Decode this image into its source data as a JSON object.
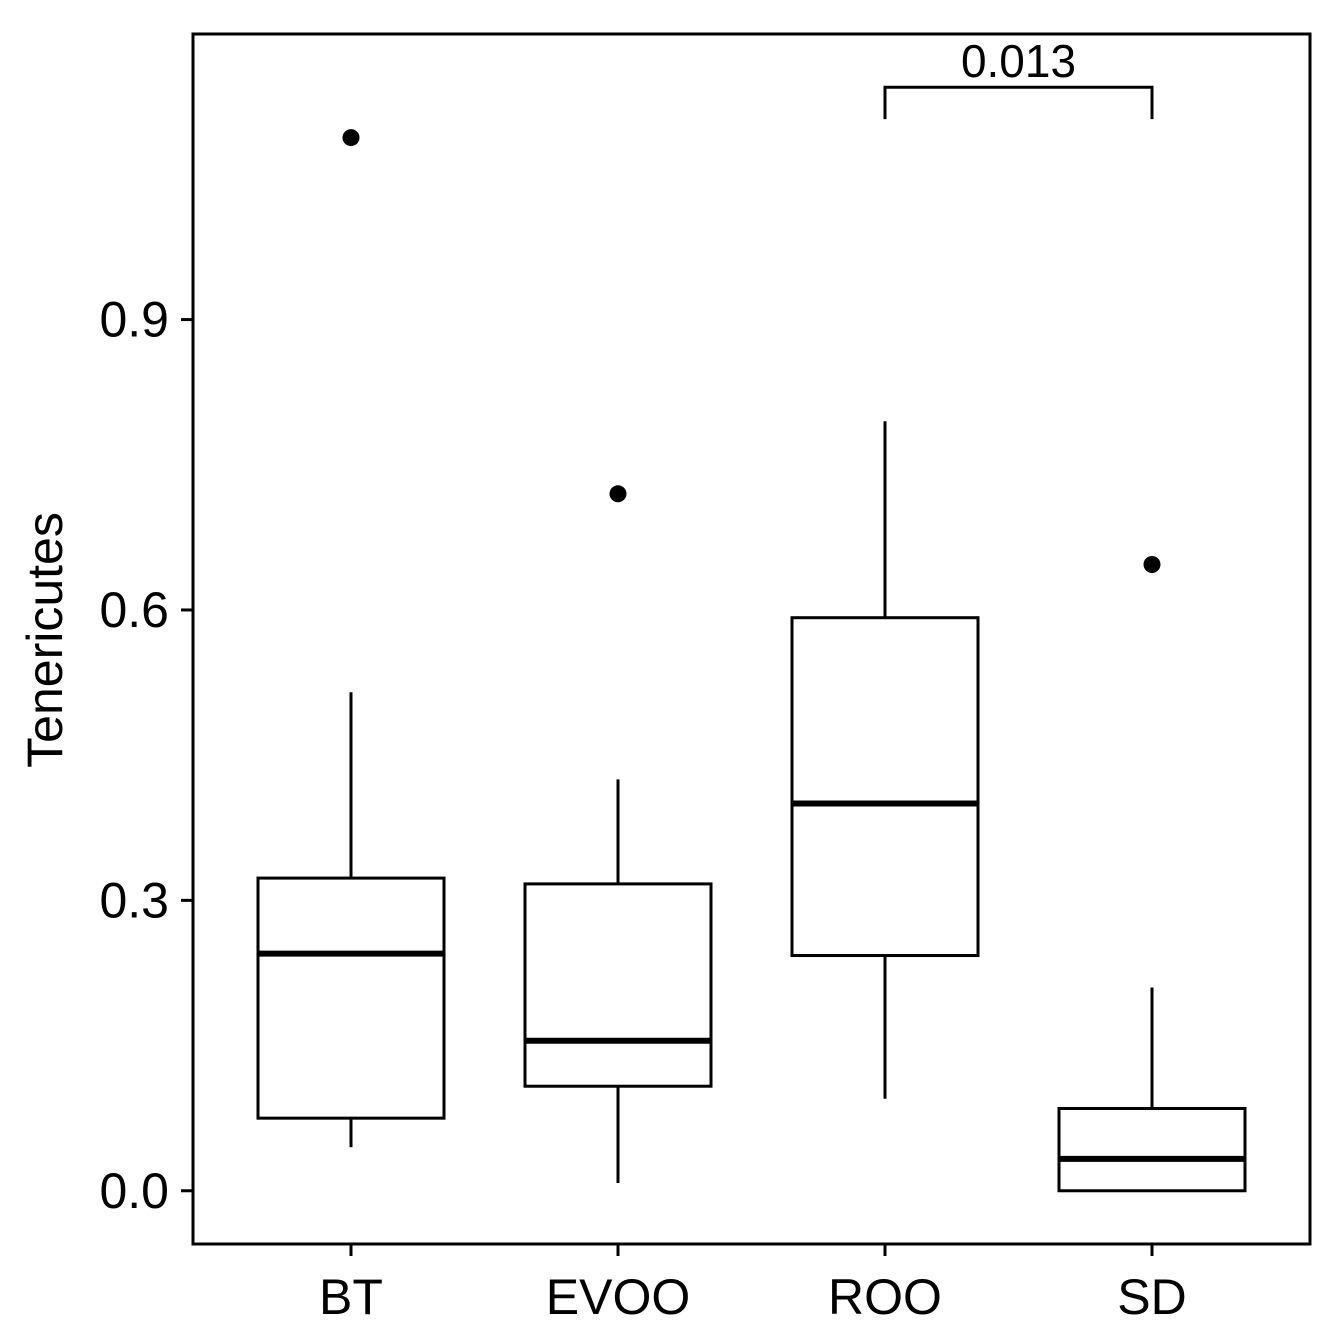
{
  "chart_data": {
    "type": "boxplot",
    "title": "",
    "xlabel": "",
    "ylabel": "Tenericutes",
    "ylim": [
      -0.055,
      1.195
    ],
    "yticks": [
      0.0,
      0.3,
      0.6,
      0.9
    ],
    "ytick_labels": [
      "0.0",
      "0.3",
      "0.6",
      "0.9"
    ],
    "categories": [
      "BT",
      "EVOO",
      "ROO",
      "SD"
    ],
    "boxes": [
      {
        "name": "BT",
        "whisker_low": 0.045,
        "q1": 0.075,
        "median": 0.245,
        "q3": 0.323,
        "whisker_high": 0.515,
        "outliers": [
          1.088
        ]
      },
      {
        "name": "EVOO",
        "whisker_low": 0.008,
        "q1": 0.108,
        "median": 0.155,
        "q3": 0.317,
        "whisker_high": 0.425,
        "outliers": [
          0.72
        ]
      },
      {
        "name": "ROO",
        "whisker_low": 0.095,
        "q1": 0.243,
        "median": 0.4,
        "q3": 0.592,
        "whisker_high": 0.795,
        "outliers": []
      },
      {
        "name": "SD",
        "whisker_low": 0.0,
        "q1": 0.0,
        "median": 0.033,
        "q3": 0.085,
        "whisker_high": 0.21,
        "outliers": [
          0.647
        ]
      }
    ],
    "annotations": [
      {
        "type": "bracket",
        "from": "ROO",
        "to": "SD",
        "label": "0.013",
        "y_line": 1.14,
        "y_tip": 1.107
      }
    ],
    "grid": false,
    "legend": "none"
  }
}
